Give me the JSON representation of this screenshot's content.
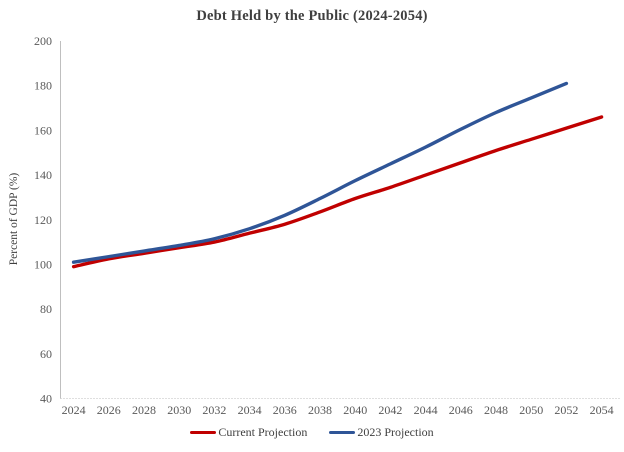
{
  "chart_data": {
    "type": "line",
    "title": "Debt Held by the Public (2024-2054)",
    "xlabel": "",
    "ylabel": "Percent of GDP (%)",
    "xlim": [
      2024,
      2054
    ],
    "ylim": [
      40,
      200
    ],
    "x_ticks": [
      2024,
      2026,
      2028,
      2030,
      2032,
      2034,
      2036,
      2038,
      2040,
      2042,
      2044,
      2046,
      2048,
      2050,
      2052,
      2054
    ],
    "y_ticks": [
      40,
      60,
      80,
      100,
      120,
      140,
      160,
      180,
      200
    ],
    "grid": false,
    "legend_position": "bottom",
    "series": [
      {
        "name": "Current Projection",
        "color": "#C00000",
        "x": [
          2024,
          2026,
          2028,
          2030,
          2032,
          2034,
          2036,
          2038,
          2040,
          2042,
          2044,
          2046,
          2048,
          2050,
          2052,
          2054
        ],
        "values": [
          99,
          102.5,
          105,
          107.5,
          110,
          114,
          118,
          123.5,
          129.5,
          134.5,
          140,
          145.5,
          151,
          156,
          161,
          166
        ]
      },
      {
        "name": "2023 Projection",
        "color": "#2F5597",
        "x": [
          2024,
          2026,
          2028,
          2030,
          2032,
          2034,
          2036,
          2038,
          2040,
          2042,
          2044,
          2046,
          2048,
          2050,
          2052
        ],
        "values": [
          101,
          103.5,
          106,
          108.5,
          111.5,
          116,
          122,
          129.5,
          137.5,
          145,
          152.5,
          160.5,
          168,
          174.5,
          181
        ]
      }
    ]
  },
  "colors": {
    "axis_line": "#BFBFBF",
    "tick_label": "#595959",
    "title_text": "#3F3F3F",
    "series_red": "#C00000",
    "series_blue": "#2F5597"
  }
}
